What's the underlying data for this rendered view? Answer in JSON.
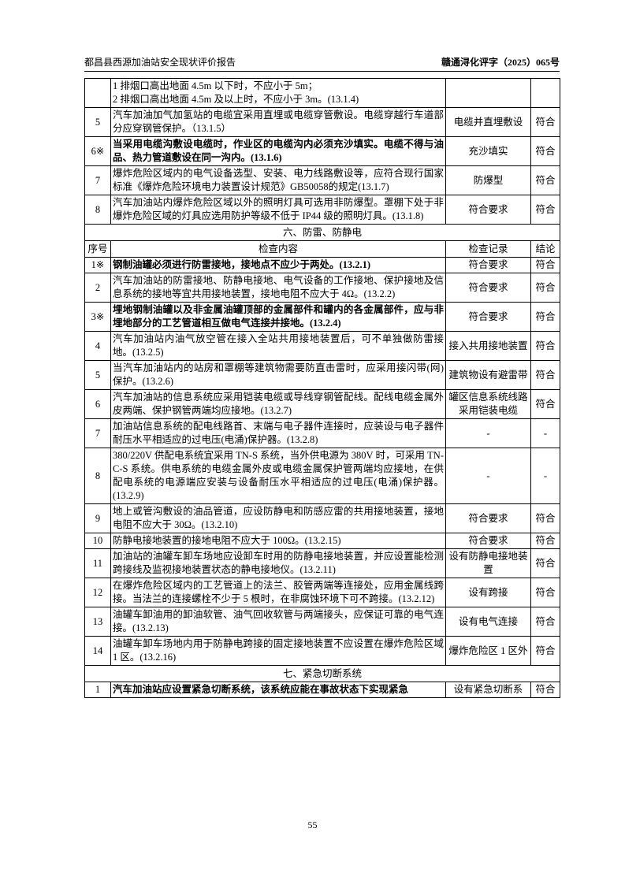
{
  "header": {
    "left": "都昌县西源加油站安全现状评价报告",
    "right": "赣通浔化评字（2025）065号"
  },
  "table": {
    "rows": [
      {
        "content": [
          "1 排烟口高出地面 4.5m 以下时，不应小于 5m；",
          "2 排烟口高出地面 4.5m 及以上时，不应小于 3m。(13.1.4)"
        ]
      },
      {
        "no": "5",
        "content": "汽车加油加气加氢站的电缆宜采用直埋或电缆穿管敷设。电缆穿越行车道部分应穿钢管保护。（13.1.5）",
        "record": "电缆并直埋敷设",
        "result": "符合"
      },
      {
        "no": "6※",
        "content": "当采用电缆沟敷设电缆时，作业区的电缆沟内必须充沙填实。电缆不得与油品、热力管道敷设在同一沟内。(13.1.6)",
        "record": "充沙填实",
        "result": "符合",
        "bold": true
      },
      {
        "no": "7",
        "content": "爆炸危险区域内的电气设备选型、安装、电力线路敷设等，应符合现行国家标准《爆炸危险环境电力装置设计规范》GB50058的规定(13.1.7)",
        "record": "防爆型",
        "result": "符合"
      },
      {
        "no": "8",
        "content": "汽车加油站内爆炸危险区域以外的照明灯具可选用非防爆型。罩棚下处于非爆炸危险区域的灯具应选用防护等级不低于 IP44 级的照明灯具。(13.1.8)",
        "record": "符合要求",
        "result": "符合"
      },
      {
        "section": "六、防雷、防静电"
      },
      {
        "columns": [
          "序号",
          "检查内容",
          "检查记录",
          "结论"
        ]
      },
      {
        "no": "1※",
        "content": "钢制油罐必须进行防雷接地，接地点不应少于两处。(13.2.1)",
        "record": "符合要求",
        "result": "符合",
        "bold": true
      },
      {
        "no": "2",
        "content": "汽车加油站的防雷接地、防静电接地、电气设备的工作接地、保护接地及信息系统的接地等宜共用接地装置，接地电阻不应大于 4Ω。(13.2.2)",
        "record": "符合要求",
        "result": "符合"
      },
      {
        "no": "3※",
        "content": "埋地钢制油罐以及非金属油罐顶部的金属部件和罐内的各金属部件，应与非埋地部分的工艺管道相互做电气连接并接地。(13.2.4)",
        "record": "符合要求",
        "result": "符合",
        "bold": true
      },
      {
        "no": "4",
        "content": "汽车加油站内油气放空管在接入全站共用接地装置后，可不单独做防雷接地。(13.2.5)",
        "record": "接入共用接地装置",
        "result": "符合"
      },
      {
        "no": "5",
        "content": "当汽车加油站内的站房和罩棚等建筑物需要防直击雷时，应采用接闪带(网)保护。(13.2.6)",
        "record": "建筑物设有避雷带",
        "result": "符合"
      },
      {
        "no": "6",
        "content": "汽车加油站的信息系统应采用铠装电缆或导线穿钢管配线。配线电缆金属外皮两端、保护钢管两端均应接地。(13.2.7)",
        "record": "罐区信息系统线路采用铠装电缆",
        "result": "符合"
      },
      {
        "no": "7",
        "content": "加油站信息系统的配电线路首、末端与电子器件连接时，应装设与电子器件耐压水平相适应的过电压(电涌)保护器。(13.2.8)",
        "record": "-",
        "result": "-"
      },
      {
        "no": "8",
        "content": "380/220V 供配电系统宜采用 TN-S 系统，当外供电源为 380V 时，可采用 TN-C-S 系统。供电系统的电缆金属外皮或电缆金属保护管两端均应接地，在供配电系统的电源端应安装与设备耐压水平相适应的过电压(电涌)保护器。(13.2.9)",
        "record": "-",
        "result": "-"
      },
      {
        "no": "9",
        "content": "地上或管沟敷设的油品管道，应设防静电和防感应雷的共用接地装置，接地电阻不应大于 30Ω。(13.2.10)",
        "record": "符合要求",
        "result": "符合"
      },
      {
        "no": "10",
        "content": "防静电接地装置的接地电阻不应大于 100Ω。(13.2.15)",
        "record": "符合要求",
        "result": "符合"
      },
      {
        "no": "11",
        "content": "加油站的油罐车卸车场地应设卸车时用的防静电接地装置，并应设置能检测跨接线及监视接地装置状态的静电接地仪。(13.2.11)",
        "record": "设有防静电接地装置",
        "result": "符合"
      },
      {
        "no": "12",
        "content": "在爆炸危险区域内的工艺管道上的法兰、胶管两端等连接处，应用金属线跨接。当法兰的连接螺栓不少于 5 根时，在非腐蚀环境下可不跨接。(13.2.12)",
        "record": "设有跨接",
        "result": "符合"
      },
      {
        "no": "13",
        "content": "油罐车卸油用的卸油软管、油气回收软管与两端接头，应保证可靠的电气连接。(13.2.13)",
        "record": "设有电气连接",
        "result": "符合"
      },
      {
        "no": "14",
        "content": "油罐车卸车场地内用于防静电跨接的固定接地装置不应设置在爆炸危险区域 1 区。(13.2.16)",
        "record": "爆炸危险区 1 区外",
        "result": "符合"
      },
      {
        "section": "七、紧急切断系统"
      },
      {
        "no": "1",
        "content": "汽车加油站应设置紧急切断系统，该系统应能在事故状态下实现紧急",
        "record": "设有紧急切断系",
        "result": "符合",
        "bold": true
      }
    ]
  },
  "footer": {
    "page": "55"
  }
}
